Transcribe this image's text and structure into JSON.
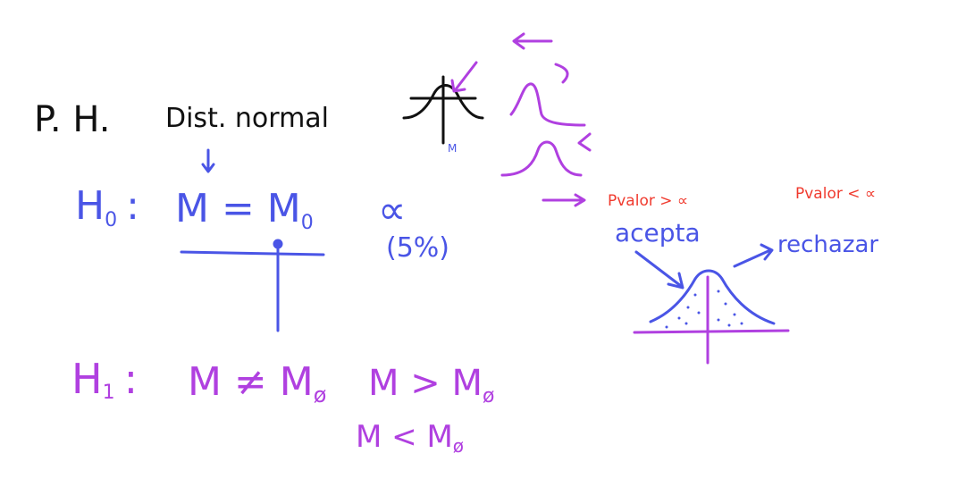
{
  "colors": {
    "black": "#111111",
    "blue": "#4a55e6",
    "purple": "#b040e0",
    "red": "#f03a2e"
  },
  "labels": {
    "ph": "P. H.",
    "dist_normal": "Dist. normal",
    "mu_under_curve": "M",
    "h0_label": "H",
    "h0_sub": "0",
    "h0_colon": ":",
    "h0_eq": "M = M",
    "h0_eq_sub": "0",
    "alpha": "∝",
    "alpha_pct": "(5%)",
    "h1_label": "H",
    "h1_sub": "1",
    "h1_colon": ":",
    "h1_neq": "M ≠ M",
    "h1_neq_sub": "ø",
    "h1_gt": "M > M",
    "h1_gt_sub": "ø",
    "h1_lt": "M < M",
    "h1_lt_sub": "ø",
    "pvalor_gt": "Pvalor > ∝",
    "pvalor_lt": "Pvalor < ∝",
    "acepta": "acepta",
    "rechazar": "rechazar"
  }
}
